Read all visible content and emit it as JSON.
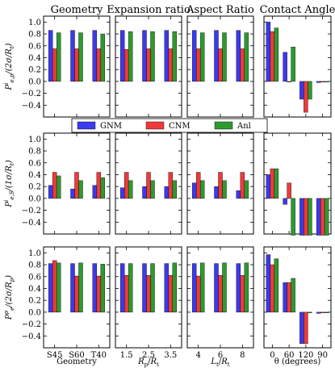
{
  "chart_data": {
    "type": "bar",
    "column_titles": [
      "Geometry",
      "Expansion ratio",
      "Aspect Ratio",
      "Contact Angle"
    ],
    "x_tick_labels": [
      [
        "S45",
        "S60",
        "T40"
      ],
      [
        "1.5",
        "2.5",
        "3.5"
      ],
      [
        "4",
        "6",
        "8"
      ],
      [
        "0",
        "60",
        "120",
        "90"
      ]
    ],
    "x_labels": [
      "Geometry",
      "R_p/R_t",
      "L_t/R_t",
      "θ (degrees)"
    ],
    "y_labels": [
      "P^i_{e,p}/(2σ/R_t)",
      "P^i_{e,S}/(1σ/R_t)",
      "P^p_e/(2σ/R_p)"
    ],
    "y_ticks": [
      "1.0",
      "0.8",
      "0.6",
      "0.4",
      "0.2",
      "0.0",
      "−0.2",
      "−0.4"
    ],
    "ylim": [
      -0.6,
      1.1
    ],
    "legend": {
      "position": "center, between top and middle rows",
      "entries": [
        {
          "name": "GNM",
          "color": "#3a3aee"
        },
        {
          "name": "CNM",
          "color": "#ee3a3a"
        },
        {
          "name": "Anl",
          "color": "#2e9a2e"
        }
      ]
    },
    "series_colors": [
      "#3a3aee",
      "#ee3a3a",
      "#2e9a2e"
    ],
    "rows": [
      {
        "panels": [
          {
            "groups": [
              [
                0.86,
                0.55,
                0.82
              ],
              [
                0.86,
                0.55,
                0.82
              ],
              [
                0.86,
                0.55,
                0.8
              ]
            ]
          },
          {
            "groups": [
              [
                0.86,
                0.54,
                0.84
              ],
              [
                0.86,
                0.55,
                0.84
              ],
              [
                0.86,
                0.55,
                0.84
              ]
            ]
          },
          {
            "groups": [
              [
                0.86,
                0.55,
                0.82
              ],
              [
                0.86,
                0.55,
                0.82
              ],
              [
                0.86,
                0.55,
                0.82
              ]
            ]
          },
          {
            "groups": [
              [
                1.0,
                0.84,
                0.9
              ],
              [
                0.49,
                0.0,
                0.58
              ],
              [
                -0.3,
                -0.52,
                -0.3
              ],
              [
                -0.02,
                0.0,
                0.0
              ]
            ]
          }
        ]
      },
      {
        "panels": [
          {
            "groups": [
              [
                0.22,
                0.44,
                0.38
              ],
              [
                0.16,
                0.44,
                0.3
              ],
              [
                0.22,
                0.44,
                0.35
              ]
            ]
          },
          {
            "groups": [
              [
                0.18,
                0.44,
                0.3
              ],
              [
                0.2,
                0.44,
                0.3
              ],
              [
                0.2,
                0.44,
                0.3
              ]
            ]
          },
          {
            "groups": [
              [
                0.26,
                0.44,
                0.3
              ],
              [
                0.2,
                0.44,
                0.3
              ],
              [
                0.13,
                0.44,
                0.3
              ]
            ]
          },
          {
            "groups": [
              [
                0.4,
                0.5,
                0.5
              ],
              [
                -0.1,
                0.26,
                -0.62
              ],
              [
                -0.62,
                -0.62,
                -0.62
              ],
              [
                -0.62,
                -0.62,
                -0.62
              ]
            ]
          }
        ]
      },
      {
        "panels": [
          {
            "groups": [
              [
                0.82,
                0.87,
                0.83
              ],
              [
                0.82,
                0.61,
                0.83
              ],
              [
                0.82,
                0.61,
                0.81
              ]
            ]
          },
          {
            "groups": [
              [
                0.82,
                0.62,
                0.82
              ],
              [
                0.82,
                0.62,
                0.82
              ],
              [
                0.82,
                0.62,
                0.83
              ]
            ]
          },
          {
            "groups": [
              [
                0.82,
                0.61,
                0.83
              ],
              [
                0.82,
                0.62,
                0.83
              ],
              [
                0.82,
                0.62,
                0.83
              ]
            ]
          },
          {
            "groups": [
              [
                0.97,
                0.8,
                0.9
              ],
              [
                0.5,
                0.5,
                0.57
              ],
              [
                -0.53,
                -0.53,
                0.0
              ],
              [
                -0.02,
                0.0,
                0.0
              ]
            ]
          }
        ]
      }
    ]
  }
}
